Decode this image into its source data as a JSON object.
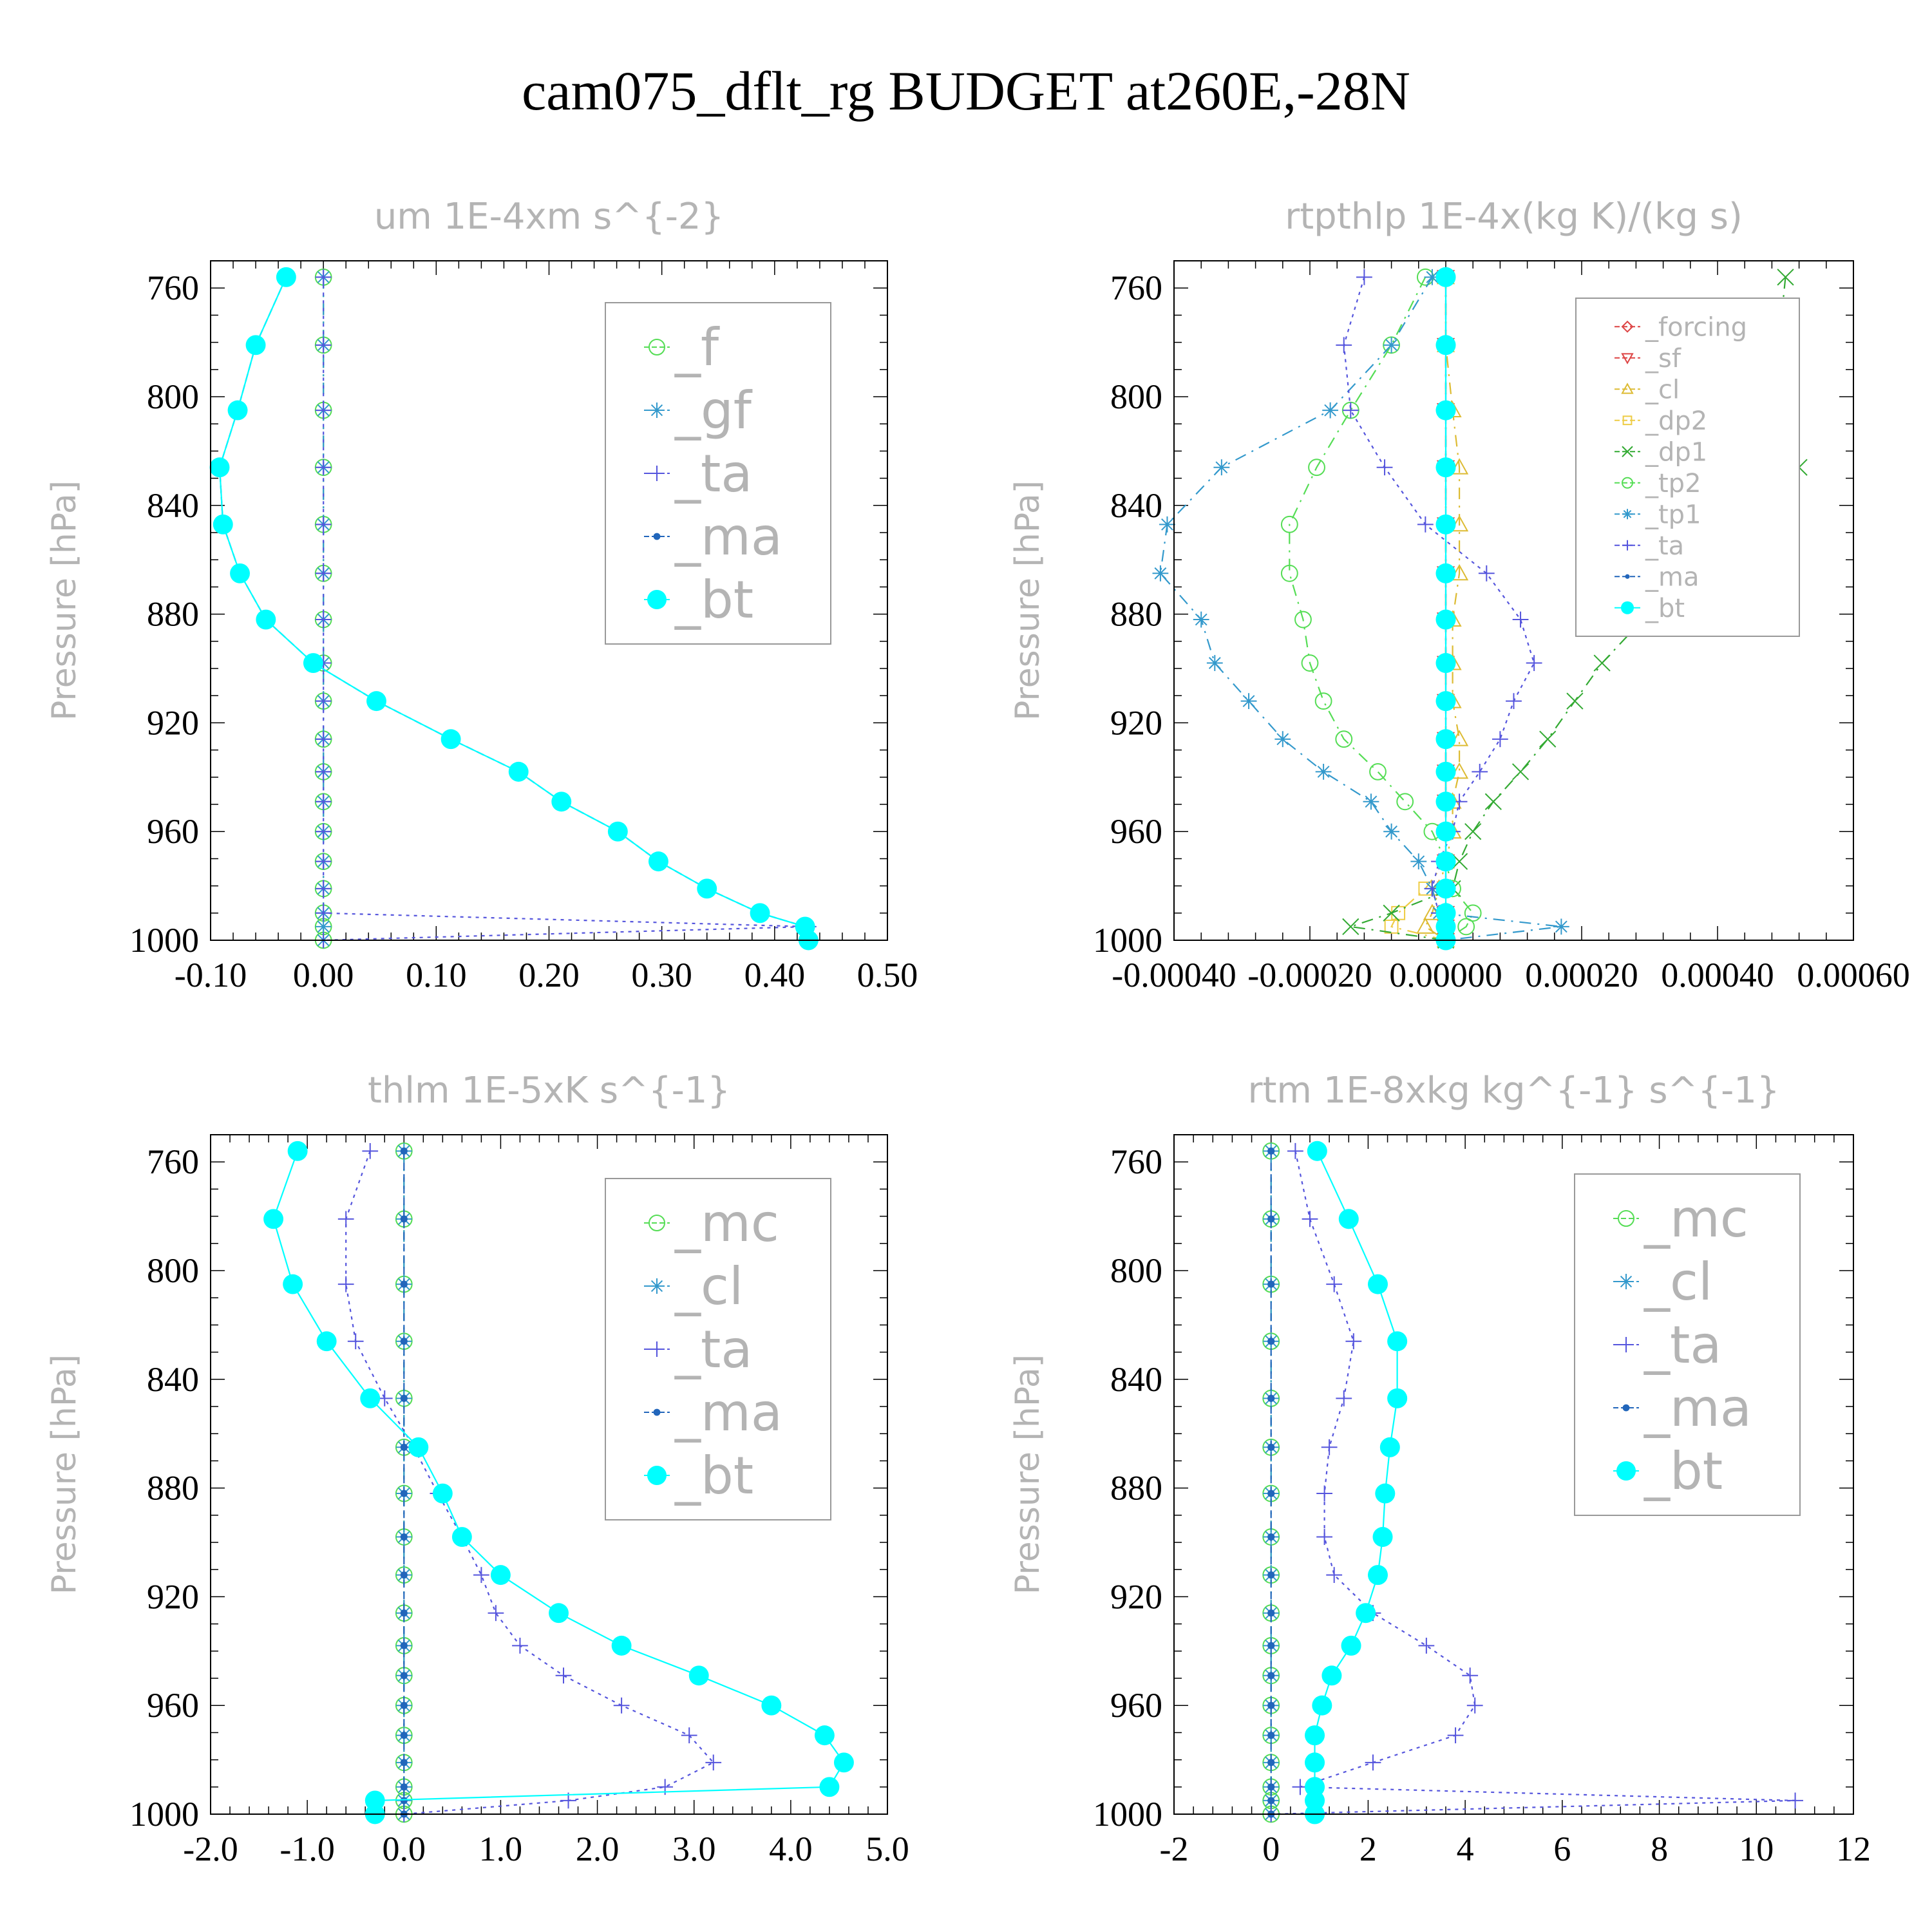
{
  "title": "cam075_dflt_rg  BUDGET at260E,-28N",
  "chart_data": [
    {
      "type": "line",
      "title": "um  1E-4xm s^{-2}",
      "ylabel": "Pressure [hPa]",
      "yrange": [
        750,
        1000
      ],
      "yticks": [
        760,
        800,
        840,
        880,
        920,
        960,
        1000
      ],
      "yticklabels": [
        "760",
        "800",
        "840",
        "880",
        "920",
        "960",
        "1000"
      ],
      "xrange": [
        -0.1,
        0.5
      ],
      "xticks": [
        -0.1,
        0.0,
        0.1,
        0.2,
        0.3,
        0.4,
        0.5
      ],
      "xticklabels": [
        "-0.10",
        "0.00",
        "0.10",
        "0.20",
        "0.30",
        "0.40",
        "0.50"
      ],
      "legend_position": "top-right",
      "legend_font_size": 80,
      "y": [
        756,
        781,
        805,
        826,
        847,
        865,
        882,
        898,
        912,
        926,
        938,
        949,
        960,
        971,
        981,
        990,
        995,
        1000
      ],
      "series": [
        {
          "name": "_f",
          "color": "#55dd55",
          "marker": "circle-open",
          "dash": "18,10,3,10",
          "values": [
            0,
            0,
            0,
            0,
            0,
            0,
            0,
            0,
            0,
            0,
            0,
            0,
            0,
            0,
            0,
            0,
            0,
            0
          ]
        },
        {
          "name": "_gf",
          "color": "#3399cc",
          "marker": "asterisk",
          "dash": "18,10,3,10",
          "values": [
            0,
            0,
            0,
            0,
            0,
            0,
            0,
            0,
            0,
            0,
            0,
            0,
            0,
            0,
            0,
            0,
            0,
            0
          ]
        },
        {
          "name": "_ta",
          "color": "#5555dd",
          "marker": "plus",
          "dash": "5,7",
          "values": [
            0,
            0,
            0,
            0,
            0,
            0,
            0,
            0,
            0,
            0,
            0,
            0,
            0,
            0,
            0,
            0,
            0.43,
            0
          ]
        },
        {
          "name": "_ma",
          "color": "#2266bb",
          "marker": "dot",
          "dash": "12,6",
          "values": [
            -0.033,
            -0.06,
            -0.076,
            -0.092,
            -0.089,
            -0.074,
            -0.051,
            -0.009,
            0.047,
            0.113,
            0.173,
            0.211,
            0.261,
            0.297,
            0.34,
            0.387,
            0.427,
            0.43
          ]
        },
        {
          "name": "_bt",
          "color": "#00ffff",
          "marker": "disc",
          "dash": "",
          "values": [
            -0.033,
            -0.06,
            -0.076,
            -0.092,
            -0.089,
            -0.074,
            -0.051,
            -0.009,
            0.047,
            0.113,
            0.173,
            0.211,
            0.261,
            0.297,
            0.34,
            0.387,
            0.427,
            0.43
          ]
        }
      ]
    },
    {
      "type": "line",
      "title": "rtpthlp  1E-4x(kg K)/(kg s)",
      "ylabel": "Pressure [hPa]",
      "yrange": [
        750,
        1000
      ],
      "yticks": [
        760,
        800,
        840,
        880,
        920,
        960,
        1000
      ],
      "yticklabels": [
        "760",
        "800",
        "840",
        "880",
        "920",
        "960",
        "1000"
      ],
      "xrange": [
        -0.0004,
        0.0006
      ],
      "xticks": [
        -0.0004,
        -0.0002,
        0.0,
        0.0002,
        0.0004,
        0.0006
      ],
      "xticklabels": [
        "-0.00040",
        "-0.00020",
        "0.00000",
        "0.00020",
        "0.00040",
        "0.00060"
      ],
      "legend_position": "top-right",
      "legend_font_size": 40,
      "y": [
        756,
        781,
        805,
        826,
        847,
        865,
        882,
        898,
        912,
        926,
        938,
        949,
        960,
        971,
        981,
        990,
        995,
        1000
      ],
      "series": [
        {
          "name": "_forcing",
          "color": "#dd4444",
          "marker": "diamond-open",
          "dash": "18,10,3,10",
          "values": [
            0,
            0,
            0,
            0,
            0,
            0,
            0,
            0,
            0,
            0,
            0,
            0,
            0,
            0,
            0,
            0,
            0,
            0
          ]
        },
        {
          "name": "_sf",
          "color": "#dd4444",
          "marker": "tri-down-open",
          "dash": "18,10,3,10",
          "values": [
            0,
            0,
            0,
            0,
            0,
            0,
            0,
            0,
            0,
            0,
            0,
            0,
            0,
            0,
            0,
            0,
            0,
            0
          ]
        },
        {
          "name": "_cl",
          "color": "#ddbb33",
          "marker": "tri-up-open",
          "dash": "18,10,3,10",
          "values": [
            0,
            0,
            1e-05,
            2e-05,
            2e-05,
            2e-05,
            1e-05,
            1e-05,
            1e-05,
            2e-05,
            2e-05,
            1e-05,
            1e-05,
            0,
            -1e-05,
            -2e-05,
            -3e-05,
            0
          ]
        },
        {
          "name": "_dp2",
          "color": "#eecc44",
          "marker": "square-open",
          "dash": "18,10,3,10",
          "values": [
            0,
            0,
            0,
            0,
            0,
            0,
            0,
            0,
            0,
            0,
            0,
            0,
            0,
            0,
            -3e-05,
            -7e-05,
            -8e-05,
            0
          ]
        },
        {
          "name": "_dp1",
          "color": "#33aa33",
          "marker": "cross",
          "dash": "18,10,3,10",
          "values": [
            0.0005,
            0.00049,
            0.00046,
            0.00052,
            0.00046,
            0.00037,
            0.00029,
            0.00023,
            0.00019,
            0.00015,
            0.00011,
            7e-05,
            4e-05,
            2e-05,
            1e-05,
            -8e-05,
            -0.00014,
            0
          ]
        },
        {
          "name": "_tp2",
          "color": "#55dd55",
          "marker": "circle-open",
          "dash": "18,10,3,10",
          "values": [
            -3e-05,
            -8e-05,
            -0.00014,
            -0.00019,
            -0.00023,
            -0.00023,
            -0.00021,
            -0.0002,
            -0.00018,
            -0.00015,
            -0.0001,
            -6e-05,
            -2e-05,
            0,
            1e-05,
            4e-05,
            3e-05,
            0
          ]
        },
        {
          "name": "_tp1",
          "color": "#3399cc",
          "marker": "asterisk",
          "dash": "18,10,3,10",
          "values": [
            -2e-05,
            -8e-05,
            -0.00017,
            -0.00033,
            -0.00041,
            -0.00042,
            -0.00036,
            -0.00034,
            -0.00029,
            -0.00024,
            -0.00018,
            -0.00011,
            -8e-05,
            -4e-05,
            -2e-05,
            -1e-05,
            0.00017,
            0
          ]
        },
        {
          "name": "_ta",
          "color": "#5555dd",
          "marker": "plus",
          "dash": "5,7",
          "values": [
            -0.00012,
            -0.00015,
            -0.00014,
            -9e-05,
            -3e-05,
            6e-05,
            0.00011,
            0.00013,
            0.0001,
            8e-05,
            5e-05,
            2e-05,
            1e-05,
            -1e-05,
            -2e-05,
            -1e-05,
            0,
            0
          ]
        },
        {
          "name": "_ma",
          "color": "#2266bb",
          "marker": "dot",
          "dash": "12,6",
          "values": [
            0,
            0,
            0,
            0,
            0,
            0,
            0,
            0,
            0,
            0,
            0,
            0,
            0,
            0,
            0,
            0,
            0,
            0
          ]
        },
        {
          "name": "_bt",
          "color": "#00ffff",
          "marker": "disc",
          "dash": "",
          "values": [
            0,
            0,
            0,
            0,
            0,
            0,
            0,
            0,
            0,
            0,
            0,
            0,
            0,
            0,
            0,
            0,
            0,
            0
          ]
        }
      ]
    },
    {
      "type": "line",
      "title": "thlm  1E-5xK s^{-1}",
      "ylabel": "Pressure [hPa]",
      "yrange": [
        750,
        1000
      ],
      "yticks": [
        760,
        800,
        840,
        880,
        920,
        960,
        1000
      ],
      "yticklabels": [
        "760",
        "800",
        "840",
        "880",
        "920",
        "960",
        "1000"
      ],
      "xrange": [
        -2.0,
        5.0
      ],
      "xticks": [
        -2.0,
        -1.0,
        0.0,
        1.0,
        2.0,
        3.0,
        4.0,
        5.0
      ],
      "xticklabels": [
        "-2.0",
        "-1.0",
        "0.0",
        "1.0",
        "2.0",
        "3.0",
        "4.0",
        "5.0"
      ],
      "legend_position": "top-right",
      "legend_font_size": 80,
      "y": [
        756,
        781,
        805,
        826,
        847,
        865,
        882,
        898,
        912,
        926,
        938,
        949,
        960,
        971,
        981,
        990,
        995,
        1000
      ],
      "series": [
        {
          "name": "_mc",
          "color": "#55dd55",
          "marker": "circle-open",
          "dash": "18,10,3,10",
          "values": [
            0,
            0,
            0,
            0,
            0,
            0,
            0,
            0,
            0,
            0,
            0,
            0,
            0,
            0,
            0,
            0,
            0,
            0
          ]
        },
        {
          "name": "_cl",
          "color": "#3399cc",
          "marker": "asterisk",
          "dash": "18,10,3,10",
          "values": [
            0,
            0,
            0,
            0,
            0,
            0,
            0,
            0,
            0,
            0,
            0,
            0,
            0,
            0,
            0,
            0,
            0,
            0
          ]
        },
        {
          "name": "_ta",
          "color": "#5555dd",
          "marker": "plus",
          "dash": "5,7",
          "values": [
            -0.35,
            -0.6,
            -0.6,
            -0.5,
            -0.2,
            0.1,
            0.35,
            0.6,
            0.8,
            0.95,
            1.2,
            1.65,
            2.25,
            2.95,
            3.2,
            2.7,
            1.7,
            0
          ]
        },
        {
          "name": "_ma",
          "color": "#2266bb",
          "marker": "dot",
          "dash": "12,6",
          "values": [
            0,
            0,
            0,
            0,
            0,
            0,
            0,
            0,
            0,
            0,
            0,
            0,
            0,
            0,
            0,
            0,
            0,
            0
          ]
        },
        {
          "name": "_bt",
          "color": "#00ffff",
          "marker": "disc",
          "dash": "",
          "values": [
            -1.1,
            -1.35,
            -1.15,
            -0.8,
            -0.35,
            0.15,
            0.4,
            0.6,
            1.0,
            1.6,
            2.25,
            3.05,
            3.8,
            4.35,
            4.55,
            4.4,
            -0.3,
            -0.3
          ]
        }
      ]
    },
    {
      "type": "line",
      "title": "rtm  1E-8xkg kg^{-1} s^{-1}",
      "ylabel": "Pressure [hPa]",
      "yrange": [
        750,
        1000
      ],
      "yticks": [
        760,
        800,
        840,
        880,
        920,
        960,
        1000
      ],
      "yticklabels": [
        "760",
        "800",
        "840",
        "880",
        "920",
        "960",
        "1000"
      ],
      "xrange": [
        -2,
        12
      ],
      "xticks": [
        -2,
        0,
        2,
        4,
        6,
        8,
        10,
        12
      ],
      "xticklabels": [
        "-2",
        "0",
        "2",
        "4",
        "6",
        "8",
        "10",
        "12"
      ],
      "legend_position": "top-right",
      "legend_font_size": 80,
      "y": [
        756,
        781,
        805,
        826,
        847,
        865,
        882,
        898,
        912,
        926,
        938,
        949,
        960,
        971,
        981,
        990,
        995,
        1000
      ],
      "series": [
        {
          "name": "_mc",
          "color": "#55dd55",
          "marker": "circle-open",
          "dash": "18,10,3,10",
          "values": [
            0,
            0,
            0,
            0,
            0,
            0,
            0,
            0,
            0,
            0,
            0,
            0,
            0,
            0,
            0,
            0,
            0,
            0
          ]
        },
        {
          "name": "_cl",
          "color": "#3399cc",
          "marker": "asterisk",
          "dash": "18,10,3,10",
          "values": [
            0,
            0,
            0,
            0,
            0,
            0,
            0,
            0,
            0,
            0,
            0,
            0,
            0,
            0,
            0,
            0,
            0,
            0
          ]
        },
        {
          "name": "_ta",
          "color": "#5555dd",
          "marker": "plus",
          "dash": "5,7",
          "values": [
            0.5,
            0.8,
            1.3,
            1.7,
            1.5,
            1.2,
            1.1,
            1.1,
            1.3,
            2.1,
            3.2,
            4.1,
            4.2,
            3.8,
            2.1,
            0.6,
            10.8,
            0
          ]
        },
        {
          "name": "_ma",
          "color": "#2266bb",
          "marker": "dot",
          "dash": "12,6",
          "values": [
            0,
            0,
            0,
            0,
            0,
            0,
            0,
            0,
            0,
            0,
            0,
            0,
            0,
            0,
            0,
            0,
            0,
            0
          ]
        },
        {
          "name": "_bt",
          "color": "#00ffff",
          "marker": "disc",
          "dash": "",
          "values": [
            0.95,
            1.6,
            2.2,
            2.6,
            2.6,
            2.45,
            2.35,
            2.3,
            2.2,
            1.95,
            1.65,
            1.25,
            1.05,
            0.9,
            0.9,
            0.9,
            0.9,
            0.9
          ]
        }
      ]
    }
  ]
}
